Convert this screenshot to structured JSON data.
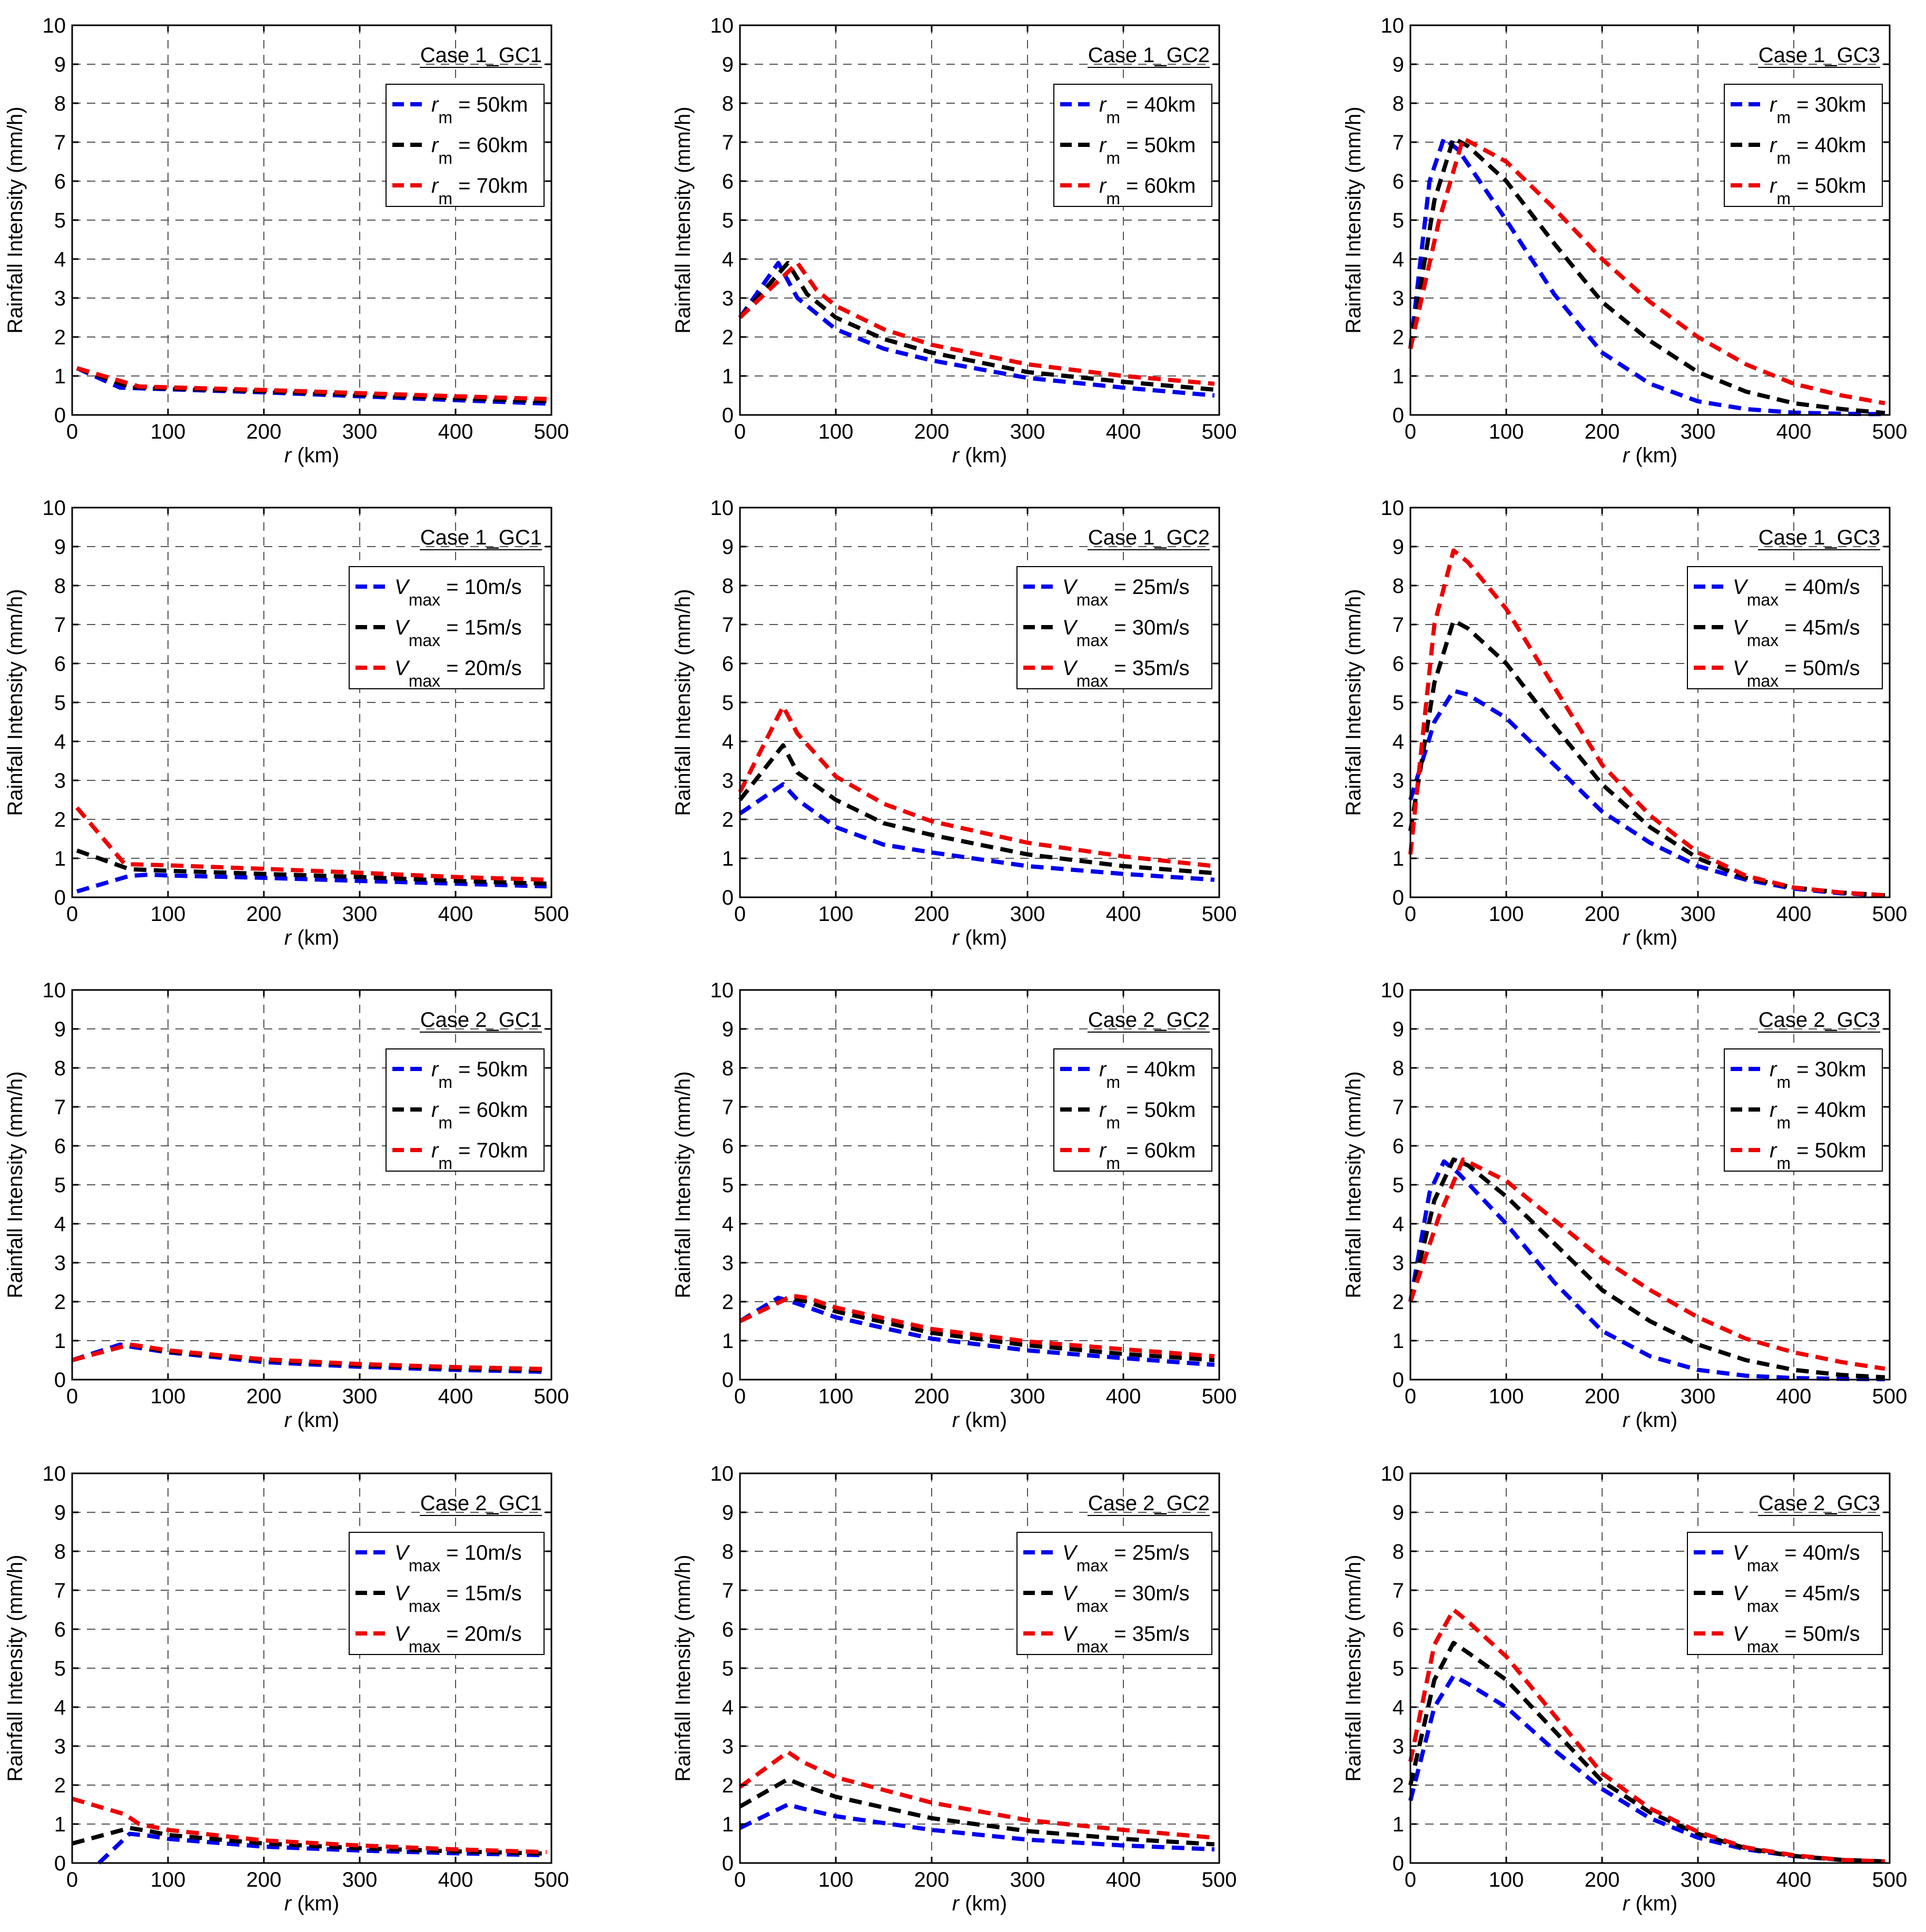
{
  "common": {
    "ylabel": "Rainfall Intensity (mm/h)",
    "xlabel_var": "r",
    "xlabel_unit": " (km)",
    "xlim": [
      0,
      500
    ],
    "ylim": [
      0,
      10
    ],
    "xticks": [
      0,
      100,
      200,
      300,
      400,
      500
    ],
    "yticks": [
      0,
      1,
      2,
      3,
      4,
      5,
      6,
      7,
      8,
      9,
      10
    ],
    "colors": [
      "#0000ee",
      "#000000",
      "#ee0000"
    ]
  },
  "chart_data": [
    {
      "type": "line",
      "title": "Case 1_GC1",
      "legend_position": "top-right",
      "series": [
        {
          "sym": "r",
          "sub": "m",
          "value": " = 50km",
          "x": [
            5,
            50,
            75,
            100,
            200,
            300,
            400,
            495
          ],
          "y": [
            1.2,
            0.7,
            0.68,
            0.66,
            0.58,
            0.48,
            0.38,
            0.29
          ]
        },
        {
          "sym": "r",
          "sub": "m",
          "value": " = 60km",
          "x": [
            5,
            60,
            80,
            100,
            200,
            300,
            400,
            495
          ],
          "y": [
            1.2,
            0.72,
            0.7,
            0.68,
            0.61,
            0.52,
            0.43,
            0.35
          ]
        },
        {
          "sym": "r",
          "sub": "m",
          "value": " = 70km",
          "x": [
            5,
            70,
            100,
            200,
            300,
            400,
            495
          ],
          "y": [
            1.2,
            0.73,
            0.71,
            0.64,
            0.56,
            0.48,
            0.41
          ]
        }
      ]
    },
    {
      "type": "line",
      "title": "Case 1_GC2",
      "legend_position": "top-right",
      "series": [
        {
          "sym": "r",
          "sub": "m",
          "value": " = 40km",
          "x": [
            0,
            40,
            60,
            100,
            150,
            200,
            300,
            400,
            495
          ],
          "y": [
            2.5,
            3.9,
            3.0,
            2.2,
            1.7,
            1.4,
            0.95,
            0.7,
            0.5
          ]
        },
        {
          "sym": "r",
          "sub": "m",
          "value": " = 50km",
          "x": [
            0,
            50,
            70,
            100,
            150,
            200,
            300,
            400,
            495
          ],
          "y": [
            2.5,
            3.9,
            3.1,
            2.5,
            1.95,
            1.6,
            1.1,
            0.85,
            0.65
          ]
        },
        {
          "sym": "r",
          "sub": "m",
          "value": " = 60km",
          "x": [
            0,
            60,
            80,
            100,
            150,
            200,
            300,
            400,
            495
          ],
          "y": [
            2.5,
            3.9,
            3.2,
            2.8,
            2.2,
            1.8,
            1.3,
            1.0,
            0.8
          ]
        }
      ]
    },
    {
      "type": "line",
      "title": "Case 1_GC3",
      "legend_position": "top-right",
      "series": [
        {
          "sym": "r",
          "sub": "m",
          "value": " = 30km",
          "x": [
            0,
            20,
            35,
            50,
            100,
            150,
            200,
            250,
            300,
            350,
            400,
            450,
            495
          ],
          "y": [
            1.7,
            6.0,
            7.1,
            6.8,
            5.0,
            3.1,
            1.6,
            0.8,
            0.35,
            0.15,
            0.06,
            0.03,
            0.02
          ]
        },
        {
          "sym": "r",
          "sub": "m",
          "value": " = 40km",
          "x": [
            0,
            25,
            45,
            60,
            100,
            150,
            200,
            250,
            300,
            350,
            400,
            450,
            495
          ],
          "y": [
            1.7,
            5.5,
            7.1,
            6.9,
            6.0,
            4.4,
            2.9,
            1.9,
            1.1,
            0.6,
            0.3,
            0.15,
            0.05
          ]
        },
        {
          "sym": "r",
          "sub": "m",
          "value": " = 50km",
          "x": [
            0,
            30,
            55,
            100,
            150,
            200,
            250,
            300,
            350,
            400,
            450,
            495
          ],
          "y": [
            1.7,
            5.0,
            7.1,
            6.5,
            5.3,
            4.0,
            2.9,
            2.0,
            1.3,
            0.8,
            0.5,
            0.3
          ]
        }
      ]
    },
    {
      "type": "line",
      "title": "Case 1_GC1",
      "legend_position": "top-right",
      "series": [
        {
          "sym": "V",
          "sub": "max",
          "value": " = 10m/s",
          "x": [
            5,
            60,
            80,
            100,
            200,
            300,
            400,
            495
          ],
          "y": [
            0.15,
            0.55,
            0.58,
            0.56,
            0.5,
            0.42,
            0.35,
            0.28
          ]
        },
        {
          "sym": "V",
          "sub": "max",
          "value": " = 15m/s",
          "x": [
            5,
            60,
            80,
            100,
            200,
            300,
            400,
            495
          ],
          "y": [
            1.2,
            0.72,
            0.7,
            0.68,
            0.6,
            0.52,
            0.42,
            0.35
          ]
        },
        {
          "sym": "V",
          "sub": "max",
          "value": " = 20m/s",
          "x": [
            5,
            55,
            70,
            100,
            200,
            300,
            400,
            495
          ],
          "y": [
            2.3,
            0.85,
            0.84,
            0.82,
            0.73,
            0.63,
            0.52,
            0.45
          ]
        }
      ]
    },
    {
      "type": "line",
      "title": "Case 1_GC2",
      "legend_position": "top-right",
      "series": [
        {
          "sym": "V",
          "sub": "max",
          "value": " = 25m/s",
          "x": [
            0,
            45,
            60,
            100,
            150,
            200,
            300,
            400,
            495
          ],
          "y": [
            2.15,
            2.9,
            2.5,
            1.8,
            1.35,
            1.15,
            0.8,
            0.6,
            0.45
          ]
        },
        {
          "sym": "V",
          "sub": "max",
          "value": " = 30m/s",
          "x": [
            0,
            45,
            60,
            100,
            150,
            200,
            300,
            400,
            495
          ],
          "y": [
            2.5,
            3.9,
            3.2,
            2.5,
            1.9,
            1.6,
            1.1,
            0.8,
            0.62
          ]
        },
        {
          "sym": "V",
          "sub": "max",
          "value": " = 35m/s",
          "x": [
            0,
            45,
            60,
            100,
            150,
            200,
            300,
            400,
            495
          ],
          "y": [
            2.7,
            4.9,
            4.2,
            3.1,
            2.4,
            1.95,
            1.4,
            1.05,
            0.8
          ]
        }
      ]
    },
    {
      "type": "line",
      "title": "Case 1_GC3",
      "legend_position": "top-right",
      "series": [
        {
          "sym": "V",
          "sub": "max",
          "value": " = 40m/s",
          "x": [
            0,
            25,
            45,
            60,
            100,
            150,
            200,
            250,
            300,
            350,
            400,
            450,
            495
          ],
          "y": [
            2.5,
            4.5,
            5.3,
            5.2,
            4.6,
            3.4,
            2.2,
            1.4,
            0.8,
            0.45,
            0.22,
            0.1,
            0.05
          ]
        },
        {
          "sym": "V",
          "sub": "max",
          "value": " = 45m/s",
          "x": [
            0,
            25,
            45,
            60,
            100,
            150,
            200,
            250,
            300,
            350,
            400,
            450,
            495
          ],
          "y": [
            1.7,
            5.5,
            7.1,
            6.9,
            6.0,
            4.4,
            2.9,
            1.8,
            1.0,
            0.5,
            0.25,
            0.12,
            0.05
          ]
        },
        {
          "sym": "V",
          "sub": "max",
          "value": " = 50m/s",
          "x": [
            0,
            25,
            45,
            60,
            100,
            150,
            200,
            250,
            300,
            350,
            400,
            450,
            495
          ],
          "y": [
            1.1,
            7.0,
            8.9,
            8.6,
            7.4,
            5.4,
            3.4,
            2.1,
            1.15,
            0.55,
            0.25,
            0.12,
            0.05
          ]
        }
      ]
    },
    {
      "type": "line",
      "title": "Case 2_GC1",
      "legend_position": "top-right",
      "series": [
        {
          "sym": "r",
          "sub": "m",
          "value": " = 50km",
          "x": [
            0,
            50,
            60,
            100,
            200,
            300,
            400,
            495
          ],
          "y": [
            0.5,
            0.9,
            0.85,
            0.7,
            0.45,
            0.33,
            0.25,
            0.2
          ]
        },
        {
          "sym": "r",
          "sub": "m",
          "value": " = 60km",
          "x": [
            0,
            60,
            100,
            200,
            300,
            400,
            495
          ],
          "y": [
            0.5,
            0.9,
            0.72,
            0.5,
            0.37,
            0.29,
            0.24
          ]
        },
        {
          "sym": "r",
          "sub": "m",
          "value": " = 70km",
          "x": [
            0,
            60,
            75,
            100,
            200,
            300,
            400,
            495
          ],
          "y": [
            0.5,
            0.9,
            0.85,
            0.75,
            0.52,
            0.4,
            0.32,
            0.27
          ]
        }
      ]
    },
    {
      "type": "line",
      "title": "Case 2_GC2",
      "legend_position": "top-right",
      "series": [
        {
          "sym": "r",
          "sub": "m",
          "value": " = 40km",
          "x": [
            0,
            40,
            60,
            100,
            200,
            300,
            400,
            495
          ],
          "y": [
            1.5,
            2.1,
            1.95,
            1.6,
            1.05,
            0.75,
            0.55,
            0.38
          ]
        },
        {
          "sym": "r",
          "sub": "m",
          "value": " = 50km",
          "x": [
            0,
            50,
            70,
            100,
            200,
            300,
            400,
            495
          ],
          "y": [
            1.5,
            2.1,
            2.0,
            1.75,
            1.2,
            0.88,
            0.66,
            0.5
          ]
        },
        {
          "sym": "r",
          "sub": "m",
          "value": " = 60km",
          "x": [
            0,
            55,
            70,
            100,
            200,
            300,
            400,
            495
          ],
          "y": [
            1.5,
            2.15,
            2.1,
            1.85,
            1.3,
            0.98,
            0.78,
            0.6
          ]
        }
      ]
    },
    {
      "type": "line",
      "title": "Case 2_GC3",
      "legend_position": "top-right",
      "series": [
        {
          "sym": "r",
          "sub": "m",
          "value": " = 30km",
          "x": [
            0,
            20,
            35,
            50,
            100,
            150,
            200,
            250,
            300,
            350,
            400,
            450,
            495
          ],
          "y": [
            2.0,
            4.8,
            5.6,
            5.3,
            4.0,
            2.5,
            1.25,
            0.6,
            0.25,
            0.1,
            0.04,
            0.02,
            0.01
          ]
        },
        {
          "sym": "r",
          "sub": "m",
          "value": " = 40km",
          "x": [
            0,
            25,
            45,
            60,
            100,
            150,
            200,
            250,
            300,
            350,
            400,
            450,
            495
          ],
          "y": [
            2.0,
            4.6,
            5.65,
            5.5,
            4.7,
            3.5,
            2.3,
            1.5,
            0.9,
            0.5,
            0.25,
            0.12,
            0.06
          ]
        },
        {
          "sym": "r",
          "sub": "m",
          "value": " = 50km",
          "x": [
            0,
            30,
            55,
            100,
            150,
            200,
            250,
            300,
            350,
            400,
            450,
            495
          ],
          "y": [
            2.0,
            4.2,
            5.65,
            5.1,
            4.1,
            3.1,
            2.3,
            1.6,
            1.05,
            0.7,
            0.45,
            0.28
          ]
        }
      ]
    },
    {
      "type": "line",
      "title": "Case 2_GC1",
      "legend_position": "top-right",
      "series": [
        {
          "sym": "V",
          "sub": "max",
          "value": " = 10m/s",
          "x": [
            28,
            60,
            80,
            100,
            200,
            300,
            400,
            495
          ],
          "y": [
            0.0,
            0.75,
            0.7,
            0.62,
            0.42,
            0.32,
            0.25,
            0.2
          ]
        },
        {
          "sym": "V",
          "sub": "max",
          "value": " = 15m/s",
          "x": [
            0,
            60,
            80,
            100,
            200,
            300,
            400,
            495
          ],
          "y": [
            0.5,
            0.9,
            0.82,
            0.72,
            0.5,
            0.38,
            0.3,
            0.24
          ]
        },
        {
          "sym": "V",
          "sub": "max",
          "value": " = 20m/s",
          "x": [
            0,
            55,
            70,
            100,
            200,
            300,
            400,
            495
          ],
          "y": [
            1.65,
            1.25,
            1.0,
            0.85,
            0.58,
            0.45,
            0.35,
            0.28
          ]
        }
      ]
    },
    {
      "type": "line",
      "title": "Case 2_GC2",
      "legend_position": "top-right",
      "series": [
        {
          "sym": "V",
          "sub": "max",
          "value": " = 25m/s",
          "x": [
            0,
            50,
            65,
            100,
            200,
            300,
            400,
            495
          ],
          "y": [
            0.9,
            1.5,
            1.4,
            1.2,
            0.85,
            0.6,
            0.45,
            0.35
          ]
        },
        {
          "sym": "V",
          "sub": "max",
          "value": " = 30m/s",
          "x": [
            0,
            50,
            65,
            100,
            200,
            300,
            400,
            495
          ],
          "y": [
            1.45,
            2.15,
            2.0,
            1.7,
            1.15,
            0.82,
            0.62,
            0.48
          ]
        },
        {
          "sym": "V",
          "sub": "max",
          "value": " = 35m/s",
          "x": [
            0,
            50,
            65,
            100,
            200,
            300,
            400,
            495
          ],
          "y": [
            1.95,
            2.85,
            2.6,
            2.2,
            1.55,
            1.1,
            0.85,
            0.65
          ]
        }
      ]
    },
    {
      "type": "line",
      "title": "Case 2_GC3",
      "legend_position": "top-right",
      "series": [
        {
          "sym": "V",
          "sub": "max",
          "value": " = 40m/s",
          "x": [
            0,
            25,
            45,
            60,
            100,
            150,
            200,
            250,
            300,
            350,
            400,
            450,
            495
          ],
          "y": [
            1.6,
            4.0,
            4.8,
            4.6,
            4.0,
            2.9,
            1.9,
            1.15,
            0.65,
            0.35,
            0.18,
            0.08,
            0.04
          ]
        },
        {
          "sym": "V",
          "sub": "max",
          "value": " = 45m/s",
          "x": [
            0,
            25,
            45,
            60,
            100,
            150,
            200,
            250,
            300,
            350,
            400,
            450,
            495
          ],
          "y": [
            2.0,
            4.7,
            5.65,
            5.4,
            4.7,
            3.4,
            2.1,
            1.3,
            0.75,
            0.38,
            0.18,
            0.08,
            0.04
          ]
        },
        {
          "sym": "V",
          "sub": "max",
          "value": " = 50m/s",
          "x": [
            0,
            25,
            45,
            60,
            100,
            150,
            200,
            250,
            300,
            350,
            400,
            450,
            495
          ],
          "y": [
            2.6,
            5.6,
            6.5,
            6.2,
            5.3,
            3.8,
            2.3,
            1.4,
            0.8,
            0.4,
            0.2,
            0.08,
            0.04
          ]
        }
      ]
    }
  ]
}
